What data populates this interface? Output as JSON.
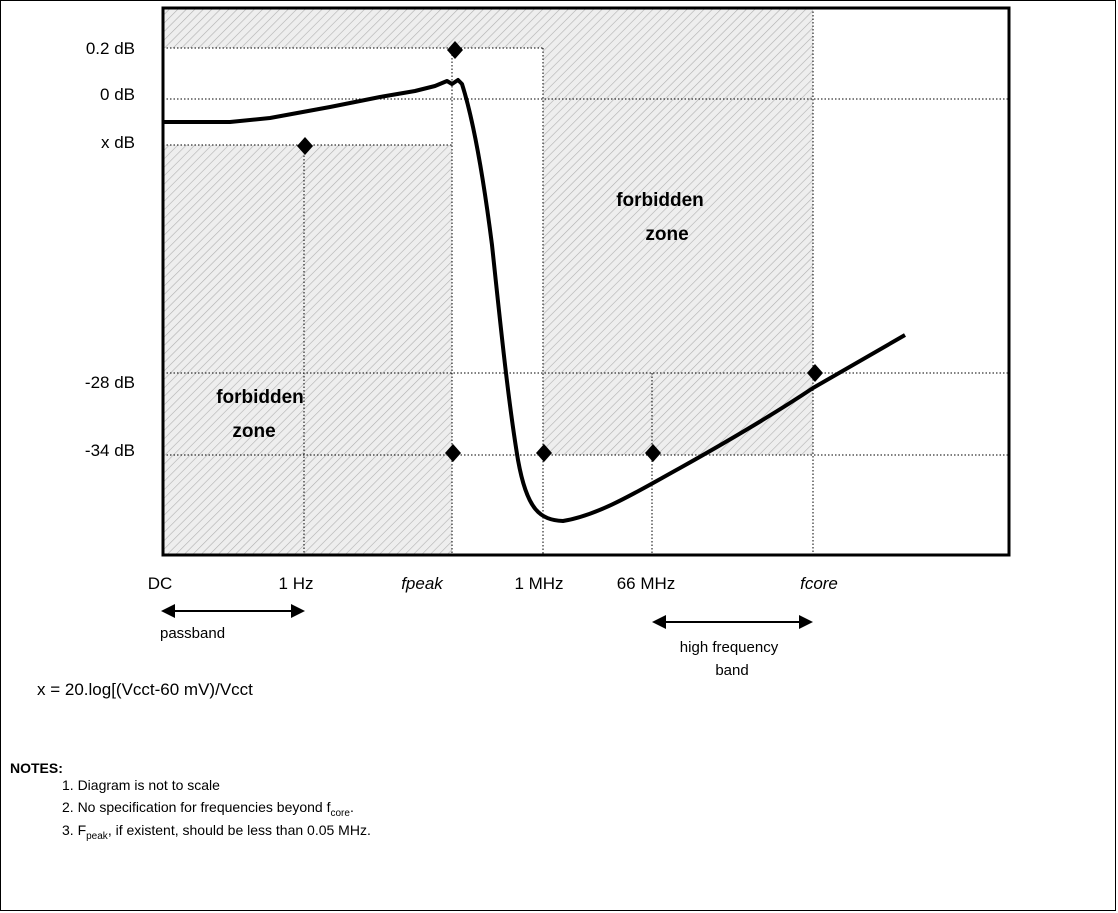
{
  "y_labels": {
    "db_0_2": "0.2 dB",
    "db_0": "0 dB",
    "db_x": "x dB",
    "db_m28": "-28 dB",
    "db_m34": "-34 dB"
  },
  "x_labels": {
    "dc": "DC",
    "hz1": "1 Hz",
    "fpeak": "fpeak",
    "mhz1": "1 MHz",
    "mhz66": "66 MHz",
    "fcore": "fcore"
  },
  "zones": {
    "upper_line1": "forbidden",
    "upper_line2": "zone",
    "lower_line1": "forbidden",
    "lower_line2": "zone"
  },
  "bands": {
    "passband": "passband",
    "hf_line1": "high frequency",
    "hf_line2": "band"
  },
  "formula": "x = 20.log[(Vcct-60 mV)/Vcct",
  "notes": {
    "heading": "NOTES:",
    "items": [
      {
        "prefix": "1. Diagram is not to scale",
        "sub": "",
        "suffix": ""
      },
      {
        "prefix": "2. No specification for frequencies beyond f",
        "sub": "core",
        "suffix": "."
      },
      {
        "prefix": "3. F",
        "sub": "peak",
        "suffix": ", if existent, should be less than 0.05 MHz."
      }
    ]
  }
}
